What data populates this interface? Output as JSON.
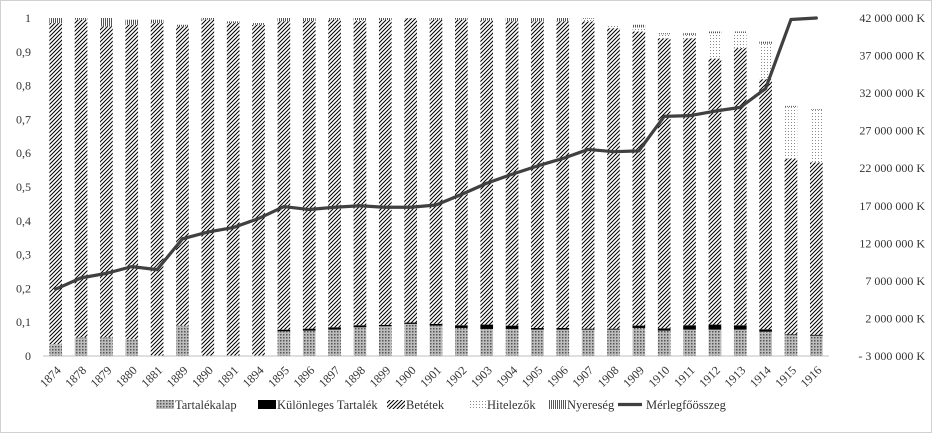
{
  "chart_data": {
    "type": "bar",
    "stacked": true,
    "categories": [
      "1874",
      "1878",
      "1879",
      "1880",
      "1881",
      "1889",
      "1890",
      "1891",
      "1894",
      "1895",
      "1896",
      "1897",
      "1898",
      "1899",
      "1900",
      "1901",
      "1902",
      "1903",
      "1904",
      "1905",
      "1906",
      "1907",
      "1908",
      "1909",
      "1910",
      "1911",
      "1912",
      "1913",
      "1914",
      "1915",
      "1916"
    ],
    "ylim": [
      0,
      1
    ],
    "yticks": [
      "0",
      "0,1",
      "0,2",
      "0,3",
      "0,4",
      "0,5",
      "0,6",
      "0,7",
      "0,8",
      "0,9",
      "1"
    ],
    "y2lim": [
      -3000000,
      42000000
    ],
    "y2ticks": [
      "- 3 000 000 K",
      "2 000 000 K",
      "7 000 000 K",
      "12 000 000 K",
      "17 000 000 K",
      "22 000 000 K",
      "27 000 000 K",
      "32 000 000 K",
      "37 000 000 K",
      "42 000 000 K"
    ],
    "legend_position": "bottom",
    "grid": false,
    "series": [
      {
        "name": "Tartalékalap",
        "pattern": "dots",
        "color": "#7f7f7f",
        "values": [
          0.035,
          0.055,
          0.055,
          0.05,
          0,
          0.09,
          0,
          0,
          0,
          0.073,
          0.075,
          0.078,
          0.085,
          0.088,
          0.095,
          0.09,
          0.083,
          0.08,
          0.08,
          0.078,
          0.078,
          0.078,
          0.078,
          0.083,
          0.075,
          0.078,
          0.078,
          0.078,
          0.072,
          0.062,
          0.06
        ]
      },
      {
        "name": "Különleges Tartalék",
        "pattern": "solid",
        "color": "#000000",
        "values": [
          0,
          0,
          0,
          0,
          0,
          0,
          0,
          0,
          0,
          0.005,
          0.006,
          0.007,
          0.006,
          0.004,
          0.004,
          0.005,
          0.008,
          0.013,
          0.01,
          0.005,
          0.005,
          0.003,
          0.003,
          0.007,
          0.007,
          0.013,
          0.015,
          0.013,
          0.007,
          0.002,
          0.003
        ]
      },
      {
        "name": "Betétek",
        "pattern": "diagonal",
        "color": "#000000",
        "values": [
          0.95,
          0.94,
          0.92,
          0.93,
          0.985,
          0.885,
          0.995,
          0.985,
          0.98,
          0.912,
          0.91,
          0.91,
          0.9,
          0.902,
          0.9,
          0.9,
          0.904,
          0.9,
          0.9,
          0.907,
          0.907,
          0.909,
          0.889,
          0.87,
          0.858,
          0.849,
          0.787,
          0.82,
          0.74,
          0.52,
          0.51
        ]
      },
      {
        "name": "Hitelezők",
        "pattern": "sparse-dots",
        "color": "#9a9a9a",
        "values": [
          0,
          0,
          0,
          0,
          0,
          0,
          0,
          0,
          0,
          0,
          0,
          0,
          0.003,
          0,
          0,
          0,
          0,
          0,
          0,
          0,
          0,
          0.008,
          0.01,
          0.012,
          0.012,
          0.01,
          0.075,
          0.045,
          0.105,
          0.153,
          0.155
        ]
      },
      {
        "name": "Nyereség",
        "pattern": "vertical",
        "color": "#555555",
        "values": [
          0.015,
          0.005,
          0.025,
          0.015,
          0.01,
          0.005,
          0.005,
          0.005,
          0.005,
          0.01,
          0.009,
          0.005,
          0.006,
          0.006,
          0.001,
          0.005,
          0.005,
          0.007,
          0.01,
          0.01,
          0.01,
          0.002,
          0,
          0.008,
          0.003,
          0.005,
          0.005,
          0.004,
          0.006,
          0.003,
          0.002
        ]
      }
    ],
    "line_series": {
      "name": "Mérlegfőösszeg",
      "axis": "secondary",
      "color": "#404040",
      "values": [
        5900000,
        7400000,
        8000000,
        8900000,
        8500000,
        12600000,
        13500000,
        14100000,
        15300000,
        16900000,
        16500000,
        16800000,
        17000000,
        16800000,
        16800000,
        17100000,
        18500000,
        20000000,
        21200000,
        22300000,
        23300000,
        24500000,
        24200000,
        24300000,
        28900000,
        29000000,
        29600000,
        30100000,
        32600000,
        41800000,
        42000000
      ]
    }
  }
}
